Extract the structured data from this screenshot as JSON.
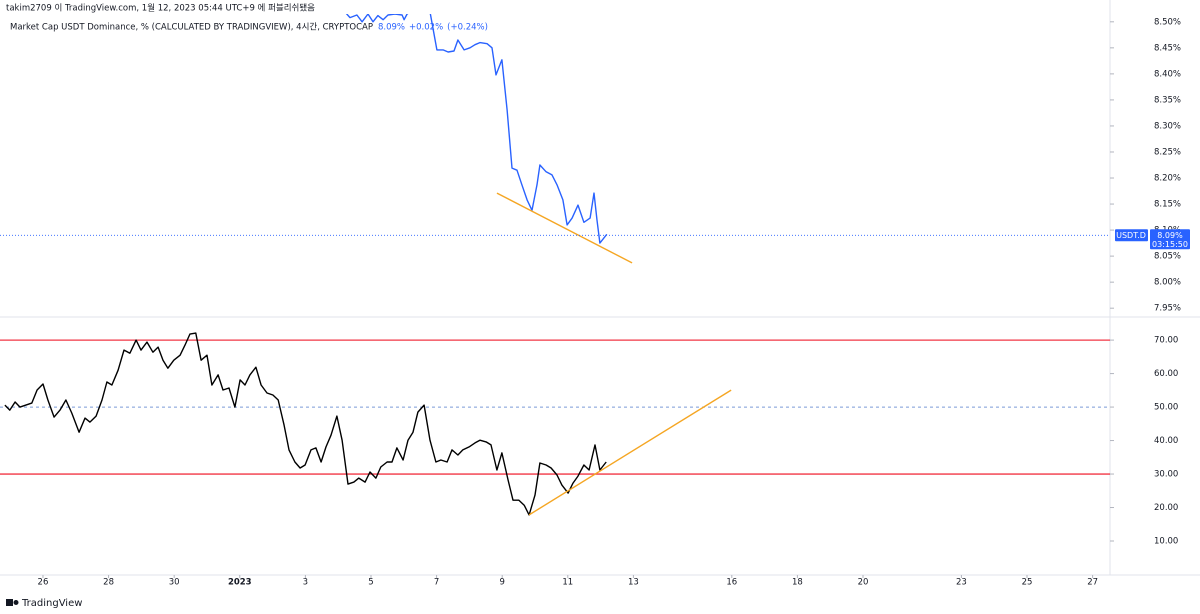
{
  "header": {
    "attribution": "takim2709 이 TradingView.com, 1월 12, 2023 05:44 UTC+9 에 퍼블리쉬됐음",
    "legend": {
      "title": "Market Cap USDT Dominance, % (CALCULATED BY TRADINGVIEW), 4시간, CRYPTOCAP",
      "value": "8.09%",
      "change": "+0.02%",
      "change_pct": "(+0.24%)"
    }
  },
  "footer": {
    "brand": "TradingView"
  },
  "chart_data": [
    {
      "type": "line",
      "xlim": [
        -0.31,
        33.53
      ],
      "ylim": [
        7.935,
        8.515
      ],
      "yticks": [
        {
          "value": 7.95,
          "label": "7.95%"
        },
        {
          "value": 8.0,
          "label": "8.00%"
        },
        {
          "value": 8.05,
          "label": "8.05%"
        },
        {
          "value": 8.1,
          "label": "8.10%"
        },
        {
          "value": 8.15,
          "label": "8.15%"
        },
        {
          "value": 8.2,
          "label": "8.20%"
        },
        {
          "value": 8.25,
          "label": "8.25%"
        },
        {
          "value": 8.3,
          "label": "8.30%"
        },
        {
          "value": 8.35,
          "label": "8.35%"
        },
        {
          "value": 8.4,
          "label": "8.40%"
        },
        {
          "value": 8.45,
          "label": "8.45%"
        },
        {
          "value": 8.5,
          "label": "8.50%"
        }
      ],
      "x": [
        10.05,
        10.36,
        10.57,
        10.73,
        10.91,
        11.06,
        11.21,
        11.37,
        11.52,
        11.73,
        11.95,
        12.01,
        12.1,
        12.49,
        12.8,
        13.01,
        13.2,
        13.35,
        13.53,
        13.65,
        13.84,
        14.02,
        14.17,
        14.32,
        14.54,
        14.69,
        14.81,
        14.99,
        15.15,
        15.3,
        15.45,
        15.6,
        15.76,
        15.91,
        16.06,
        16.15,
        16.34,
        16.52,
        16.67,
        16.85,
        16.98,
        17.13,
        17.31,
        17.49,
        17.68,
        17.8,
        17.89,
        17.98,
        18.19
      ],
      "series": [
        {
          "name": "USDT.D",
          "color": "#2962ff",
          "values": [
            8.53,
            8.508,
            8.513,
            8.5,
            8.515,
            8.5,
            8.512,
            8.504,
            8.513,
            8.515,
            8.513,
            8.504,
            8.515,
            8.53,
            8.519,
            8.446,
            8.446,
            8.442,
            8.444,
            8.465,
            8.446,
            8.45,
            8.456,
            8.46,
            8.458,
            8.45,
            8.398,
            8.427,
            8.331,
            8.219,
            8.215,
            8.187,
            8.158,
            8.138,
            8.187,
            8.225,
            8.212,
            8.206,
            8.187,
            8.158,
            8.11,
            8.123,
            8.148,
            8.115,
            8.123,
            8.171,
            8.119,
            8.075,
            8.092
          ]
        }
      ],
      "last_value": {
        "value": 8.09,
        "labels": [
          "8.09%",
          "03:15:50"
        ]
      },
      "trendline": {
        "color": "#f5a623",
        "x": [
          14.84,
          18.96
        ],
        "y": [
          8.171,
          8.037
        ]
      }
    },
    {
      "type": "line",
      "xlim": [
        -0.31,
        33.53
      ],
      "ylim": [
        -0.15,
        76.6
      ],
      "xticks": [
        {
          "value": 1,
          "label": "26"
        },
        {
          "value": 3,
          "label": "28"
        },
        {
          "value": 5,
          "label": "30"
        },
        {
          "value": 7,
          "label": "2023"
        },
        {
          "value": 9,
          "label": "3"
        },
        {
          "value": 11,
          "label": "5"
        },
        {
          "value": 13,
          "label": "7"
        },
        {
          "value": 15,
          "label": "9"
        },
        {
          "value": 17,
          "label": "11"
        },
        {
          "value": 19,
          "label": "13"
        },
        {
          "value": 22,
          "label": "16"
        },
        {
          "value": 24,
          "label": "18"
        },
        {
          "value": 26,
          "label": "20"
        },
        {
          "value": 29,
          "label": "23"
        },
        {
          "value": 31,
          "label": "25"
        },
        {
          "value": 33,
          "label": "27"
        }
      ],
      "yticks": [
        {
          "value": 10,
          "label": "10.00"
        },
        {
          "value": 20,
          "label": "20.00"
        },
        {
          "value": 30,
          "label": "30.00"
        },
        {
          "value": 40,
          "label": "40.00"
        },
        {
          "value": 50,
          "label": "50.00"
        },
        {
          "value": 60,
          "label": "60.00"
        },
        {
          "value": 70,
          "label": "70.00"
        }
      ],
      "x": [
        -0.16,
        -0.01,
        0.15,
        0.3,
        0.66,
        0.82,
        1.0,
        1.15,
        1.34,
        1.52,
        1.7,
        1.88,
        2.1,
        2.28,
        2.43,
        2.62,
        2.8,
        2.95,
        3.1,
        3.29,
        3.47,
        3.65,
        3.84,
        3.99,
        4.17,
        4.35,
        4.51,
        4.66,
        4.81,
        4.99,
        5.18,
        5.33,
        5.48,
        5.66,
        5.82,
        6.0,
        6.15,
        6.34,
        6.49,
        6.67,
        6.85,
        7.01,
        7.16,
        7.31,
        7.49,
        7.65,
        7.83,
        8.01,
        8.17,
        8.35,
        8.5,
        8.68,
        8.84,
        8.99,
        9.17,
        9.32,
        9.48,
        9.63,
        9.78,
        9.96,
        10.12,
        10.3,
        10.48,
        10.63,
        10.82,
        10.97,
        11.15,
        11.3,
        11.49,
        11.64,
        11.79,
        11.98,
        12.13,
        12.28,
        12.43,
        12.62,
        12.8,
        12.98,
        13.13,
        13.32,
        13.47,
        13.65,
        13.8,
        13.99,
        14.17,
        14.32,
        14.51,
        14.66,
        14.84,
        14.99,
        15.18,
        15.33,
        15.51,
        15.67,
        15.82,
        16.0,
        16.15,
        16.34,
        16.49,
        16.67,
        16.82,
        17.01,
        17.16,
        17.31,
        17.49,
        17.65,
        17.83,
        17.98,
        18.17
      ],
      "series": [
        {
          "color": "#000000",
          "values": [
            50.6,
            49.1,
            51.5,
            50.0,
            51.2,
            55.1,
            56.9,
            52.1,
            47.0,
            49.1,
            52.1,
            48.2,
            42.5,
            46.7,
            45.5,
            47.3,
            52.1,
            57.5,
            56.6,
            61.0,
            67.0,
            66.1,
            70.0,
            67.0,
            69.4,
            66.4,
            67.9,
            64.0,
            61.6,
            64.0,
            65.5,
            68.5,
            71.8,
            72.1,
            64.0,
            65.5,
            56.6,
            59.6,
            55.1,
            55.7,
            50.0,
            58.1,
            56.6,
            59.6,
            61.9,
            56.6,
            54.2,
            53.6,
            52.1,
            44.6,
            37.2,
            33.6,
            31.8,
            32.7,
            37.2,
            37.8,
            33.6,
            38.1,
            41.6,
            47.3,
            40.1,
            27.0,
            27.6,
            28.8,
            27.6,
            30.6,
            28.8,
            32.1,
            33.6,
            33.6,
            37.8,
            34.2,
            40.1,
            42.5,
            48.5,
            50.6,
            40.1,
            33.6,
            34.2,
            33.6,
            37.2,
            35.7,
            37.2,
            38.1,
            39.3,
            40.1,
            39.6,
            38.7,
            31.2,
            36.3,
            28.2,
            22.2,
            22.2,
            20.7,
            17.8,
            23.7,
            33.3,
            32.7,
            31.8,
            29.7,
            26.7,
            24.3,
            27.3,
            29.4,
            32.7,
            31.2,
            38.7,
            31.2,
            33.6
          ]
        }
      ],
      "levels": [
        {
          "value": 70,
          "color": "#f23645"
        },
        {
          "value": 50,
          "color": "#7b9bd6",
          "dashed": true
        },
        {
          "value": 30,
          "color": "#f23645"
        }
      ],
      "trendline": {
        "color": "#f5a623",
        "x": [
          15.82,
          21.98
        ],
        "y": [
          17.8,
          55.07
        ]
      }
    }
  ]
}
